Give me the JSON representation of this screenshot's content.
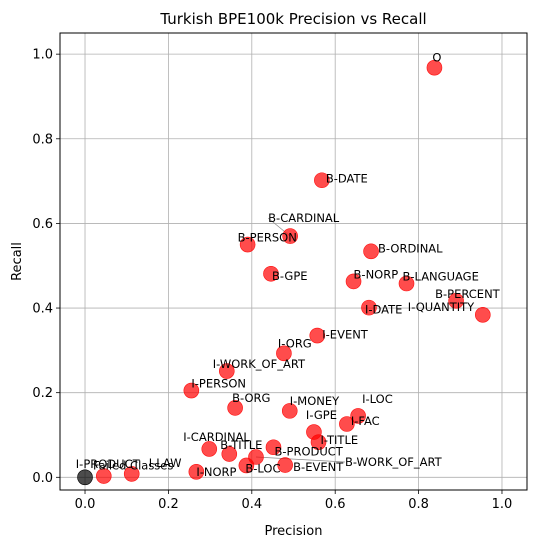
{
  "chart_data": {
    "type": "scatter",
    "title": "Turkish BPE100k Precision vs Recall",
    "xlabel": "Precision",
    "ylabel": "Recall",
    "xlim": [
      -0.06,
      1.06
    ],
    "ylim": [
      -0.03,
      1.05
    ],
    "xticks": [
      "0.0",
      "0.2",
      "0.4",
      "0.6",
      "0.8",
      "1.0"
    ],
    "yticks": [
      "0.0",
      "0.2",
      "0.4",
      "0.6",
      "0.8",
      "1.0"
    ],
    "grid": true,
    "point_color": "#ff0000",
    "failed_color": "#000000",
    "points": [
      {
        "label": "O",
        "x": 0.838,
        "y": 0.968
      },
      {
        "label": "B-DATE",
        "x": 0.568,
        "y": 0.702
      },
      {
        "label": "B-CARDINAL",
        "x": 0.492,
        "y": 0.57
      },
      {
        "label": "B-PERSON",
        "x": 0.39,
        "y": 0.55
      },
      {
        "label": "B-ORDINAL",
        "x": 0.686,
        "y": 0.534
      },
      {
        "label": "B-GPE",
        "x": 0.446,
        "y": 0.481
      },
      {
        "label": "B-NORP",
        "x": 0.644,
        "y": 0.463
      },
      {
        "label": "B-LANGUAGE",
        "x": 0.771,
        "y": 0.458
      },
      {
        "label": "B-PERCENT",
        "x": 0.89,
        "y": 0.417
      },
      {
        "label": "I-DATE",
        "x": 0.681,
        "y": 0.401
      },
      {
        "label": "I-QUANTITY",
        "x": 0.954,
        "y": 0.384
      },
      {
        "label": "I-EVENT",
        "x": 0.557,
        "y": 0.335
      },
      {
        "label": "I-ORG",
        "x": 0.477,
        "y": 0.293
      },
      {
        "label": "I-WORK_OF_ART",
        "x": 0.34,
        "y": 0.251
      },
      {
        "label": "I-PERSON",
        "x": 0.255,
        "y": 0.205
      },
      {
        "label": "B-ORG",
        "x": 0.36,
        "y": 0.164
      },
      {
        "label": "I-MONEY",
        "x": 0.491,
        "y": 0.157
      },
      {
        "label": "I-LOC",
        "x": 0.655,
        "y": 0.145
      },
      {
        "label": "I-FAC",
        "x": 0.628,
        "y": 0.126
      },
      {
        "label": "I-GPE",
        "x": 0.549,
        "y": 0.107
      },
      {
        "label": "I-TITLE",
        "x": 0.56,
        "y": 0.083
      },
      {
        "label": "I-CARDINAL",
        "x": 0.298,
        "y": 0.067
      },
      {
        "label": "B-TITLE",
        "x": 0.346,
        "y": 0.055
      },
      {
        "label": "B-PRODUCT",
        "x": 0.452,
        "y": 0.071
      },
      {
        "label": "B-WORK_OF_ART",
        "x": 0.41,
        "y": 0.048
      },
      {
        "label": "B-LOC",
        "x": 0.387,
        "y": 0.028
      },
      {
        "label": "B-EVENT",
        "x": 0.48,
        "y": 0.029
      },
      {
        "label": "I-NORP",
        "x": 0.267,
        "y": 0.013
      },
      {
        "label": "I-LAW",
        "x": 0.112,
        "y": 0.008
      },
      {
        "label": "I-PRODUCT",
        "x": 0.045,
        "y": 0.003
      }
    ],
    "failed_point": {
      "label": "Failed Classes",
      "x": 0.0,
      "y": 0.0
    }
  }
}
